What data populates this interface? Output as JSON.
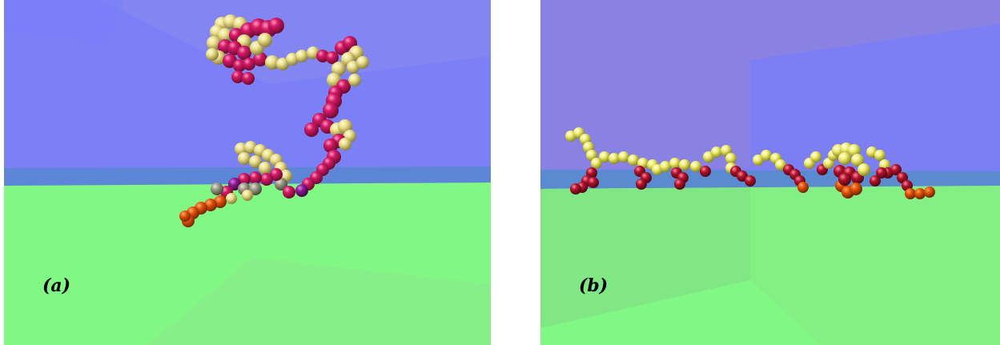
{
  "panels": [
    {
      "label": "(a)",
      "colors": {
        "wall": "#7c80f6",
        "wall_shade": "#8f8cf0",
        "floor": "#82f884",
        "floor_shade": "#86ec86",
        "horizon_band": "#5e86d6",
        "bead_magenta": "#c8145a",
        "bead_yellow": "#ede38e",
        "bead_orange": "#e2520a",
        "bead_gray": "#9a9a86",
        "bead_purple": "#8a1a90"
      }
    },
    {
      "label": "(b)",
      "colors": {
        "wall": "#7d7ef2",
        "wall_shade": "#8e84e6",
        "floor": "#82f884",
        "floor_shade": "#7fe084",
        "horizon_band": "#5a8ad0",
        "bead_red": "#b2122e",
        "bead_yellow": "#f0ee70",
        "bead_orange": "#e05208"
      }
    }
  ]
}
